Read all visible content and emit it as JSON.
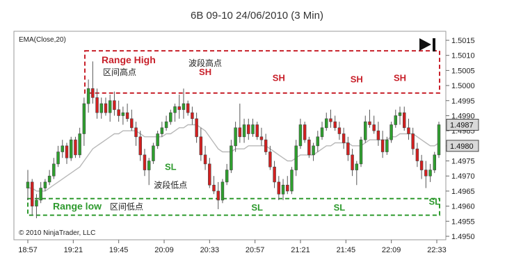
{
  "chart_data": {
    "type": "candlestick",
    "title": "6B 09-10  24/06/2010 (3 Min)",
    "indicator_label": "EMA(Close,20)",
    "copyright": "© 2010 NinjaTrader, LLC",
    "x_tick_labels": [
      "18:57",
      "19:21",
      "19:45",
      "20:09",
      "20:33",
      "20:57",
      "21:21",
      "21:45",
      "22:09",
      "22:33"
    ],
    "y_tick_labels": [
      "1.4950",
      "1.4955",
      "1.4960",
      "1.4965",
      "1.4970",
      "1.4975",
      "1.4980",
      "1.4985",
      "1.4990",
      "1.4995",
      "1.5000",
      "1.5005",
      "1.5010",
      "1.5015"
    ],
    "ylim": [
      1.495,
      1.5015
    ],
    "price_labels": [
      {
        "text": "1.4987",
        "value": 1.4987
      },
      {
        "text": "1.4980",
        "value": 1.498
      }
    ],
    "range_high": {
      "label": "Range High",
      "sublabel": "区间高点",
      "top": 1.50115,
      "bottom": 1.49975,
      "color": "#c8202a"
    },
    "range_low": {
      "label": "Range low",
      "sublabel": "区间低点",
      "top": 1.49625,
      "bottom": 1.4957,
      "color": "#2e9a2e"
    },
    "annotations": [
      {
        "text": "波段高点",
        "color": "#222222",
        "bar": 41,
        "value": 1.50065
      },
      {
        "text": "SH",
        "color": "#c8202a",
        "bar": 41,
        "value": 1.50035
      },
      {
        "text": "SH",
        "color": "#c8202a",
        "bar": 58,
        "value": 1.50015
      },
      {
        "text": "SH",
        "color": "#c8202a",
        "bar": 76,
        "value": 1.5001
      },
      {
        "text": "SH",
        "color": "#c8202a",
        "bar": 86,
        "value": 1.50015
      },
      {
        "text": "SL",
        "color": "#2e9a2e",
        "bar": 33,
        "value": 1.4972
      },
      {
        "text": "波段低点",
        "color": "#222222",
        "bar": 33,
        "value": 1.4966
      },
      {
        "text": "SL",
        "color": "#2e9a2e",
        "bar": 53,
        "value": 1.49585
      },
      {
        "text": "SL",
        "color": "#2e9a2e",
        "bar": 72,
        "value": 1.49585
      },
      {
        "text": "SL",
        "color": "#2e9a2e",
        "bar": 94,
        "value": 1.49605
      }
    ],
    "candles": [
      {
        "o": 1.4966,
        "h": 1.4972,
        "l": 1.4962,
        "c": 1.4968
      },
      {
        "o": 1.4968,
        "h": 1.4969,
        "l": 1.4957,
        "c": 1.496
      },
      {
        "o": 1.496,
        "h": 1.4964,
        "l": 1.4956,
        "c": 1.4962
      },
      {
        "o": 1.4962,
        "h": 1.4968,
        "l": 1.4961,
        "c": 1.4966
      },
      {
        "o": 1.4966,
        "h": 1.4969,
        "l": 1.4965,
        "c": 1.4968
      },
      {
        "o": 1.4968,
        "h": 1.4972,
        "l": 1.4967,
        "c": 1.497
      },
      {
        "o": 1.497,
        "h": 1.4976,
        "l": 1.4969,
        "c": 1.4974
      },
      {
        "o": 1.4974,
        "h": 1.498,
        "l": 1.4973,
        "c": 1.4978
      },
      {
        "o": 1.4978,
        "h": 1.4982,
        "l": 1.4976,
        "c": 1.498
      },
      {
        "o": 1.498,
        "h": 1.4981,
        "l": 1.4974,
        "c": 1.4976
      },
      {
        "o": 1.4976,
        "h": 1.4983,
        "l": 1.4975,
        "c": 1.4982
      },
      {
        "o": 1.4982,
        "h": 1.4983,
        "l": 1.4976,
        "c": 1.4977
      },
      {
        "o": 1.4977,
        "h": 1.4986,
        "l": 1.4976,
        "c": 1.4984
      },
      {
        "o": 1.4984,
        "h": 1.4996,
        "l": 1.498,
        "c": 1.4994
      },
      {
        "o": 1.4994,
        "h": 1.5002,
        "l": 1.4991,
        "c": 1.4999
      },
      {
        "o": 1.4999,
        "h": 1.5008,
        "l": 1.4994,
        "c": 1.4996
      },
      {
        "o": 1.4996,
        "h": 1.4999,
        "l": 1.4989,
        "c": 1.4991
      },
      {
        "o": 1.4991,
        "h": 1.4996,
        "l": 1.4989,
        "c": 1.4994
      },
      {
        "o": 1.4994,
        "h": 1.4996,
        "l": 1.499,
        "c": 1.4991
      },
      {
        "o": 1.4991,
        "h": 1.4997,
        "l": 1.4988,
        "c": 1.4995
      },
      {
        "o": 1.4995,
        "h": 1.4998,
        "l": 1.499,
        "c": 1.4992
      },
      {
        "o": 1.4992,
        "h": 1.4995,
        "l": 1.4988,
        "c": 1.499
      },
      {
        "o": 1.499,
        "h": 1.4993,
        "l": 1.4987,
        "c": 1.4991
      },
      {
        "o": 1.4991,
        "h": 1.4994,
        "l": 1.4988,
        "c": 1.4989
      },
      {
        "o": 1.4989,
        "h": 1.4992,
        "l": 1.4985,
        "c": 1.4986
      },
      {
        "o": 1.4986,
        "h": 1.4988,
        "l": 1.498,
        "c": 1.4983
      },
      {
        "o": 1.4983,
        "h": 1.4985,
        "l": 1.4975,
        "c": 1.4977
      },
      {
        "o": 1.4977,
        "h": 1.4979,
        "l": 1.497,
        "c": 1.4972
      },
      {
        "o": 1.4972,
        "h": 1.4976,
        "l": 1.4967,
        "c": 1.4975
      },
      {
        "o": 1.4975,
        "h": 1.4981,
        "l": 1.4974,
        "c": 1.498
      },
      {
        "o": 1.498,
        "h": 1.4985,
        "l": 1.4979,
        "c": 1.4984
      },
      {
        "o": 1.4984,
        "h": 1.4988,
        "l": 1.4983,
        "c": 1.4986
      },
      {
        "o": 1.4986,
        "h": 1.499,
        "l": 1.4985,
        "c": 1.4988
      },
      {
        "o": 1.4988,
        "h": 1.4992,
        "l": 1.4987,
        "c": 1.4991
      },
      {
        "o": 1.4991,
        "h": 1.4994,
        "l": 1.4988,
        "c": 1.4993
      },
      {
        "o": 1.4993,
        "h": 1.4997,
        "l": 1.4989,
        "c": 1.4992
      },
      {
        "o": 1.4992,
        "h": 1.4999,
        "l": 1.4989,
        "c": 1.4994
      },
      {
        "o": 1.4994,
        "h": 1.4995,
        "l": 1.499,
        "c": 1.4991
      },
      {
        "o": 1.4991,
        "h": 1.4993,
        "l": 1.4987,
        "c": 1.4989
      },
      {
        "o": 1.4989,
        "h": 1.4991,
        "l": 1.4981,
        "c": 1.4983
      },
      {
        "o": 1.4983,
        "h": 1.4986,
        "l": 1.4975,
        "c": 1.4977
      },
      {
        "o": 1.4977,
        "h": 1.498,
        "l": 1.4972,
        "c": 1.4974
      },
      {
        "o": 1.4974,
        "h": 1.4976,
        "l": 1.4966,
        "c": 1.4967
      },
      {
        "o": 1.4967,
        "h": 1.497,
        "l": 1.4964,
        "c": 1.4965
      },
      {
        "o": 1.4965,
        "h": 1.4968,
        "l": 1.4959,
        "c": 1.4962
      },
      {
        "o": 1.4962,
        "h": 1.4969,
        "l": 1.4961,
        "c": 1.4968
      },
      {
        "o": 1.4968,
        "h": 1.4974,
        "l": 1.4967,
        "c": 1.4972
      },
      {
        "o": 1.4972,
        "h": 1.4982,
        "l": 1.4971,
        "c": 1.498
      },
      {
        "o": 1.498,
        "h": 1.4988,
        "l": 1.4978,
        "c": 1.4986
      },
      {
        "o": 1.4986,
        "h": 1.4994,
        "l": 1.4981,
        "c": 1.4983
      },
      {
        "o": 1.4983,
        "h": 1.4989,
        "l": 1.4981,
        "c": 1.4987
      },
      {
        "o": 1.4987,
        "h": 1.4989,
        "l": 1.4982,
        "c": 1.4984
      },
      {
        "o": 1.4984,
        "h": 1.4989,
        "l": 1.4983,
        "c": 1.4987
      },
      {
        "o": 1.4987,
        "h": 1.4988,
        "l": 1.4982,
        "c": 1.4983
      },
      {
        "o": 1.4983,
        "h": 1.4986,
        "l": 1.498,
        "c": 1.4982
      },
      {
        "o": 1.4982,
        "h": 1.4984,
        "l": 1.4977,
        "c": 1.4978
      },
      {
        "o": 1.4978,
        "h": 1.498,
        "l": 1.4972,
        "c": 1.4973
      },
      {
        "o": 1.4973,
        "h": 1.4975,
        "l": 1.4966,
        "c": 1.4968
      },
      {
        "o": 1.4968,
        "h": 1.497,
        "l": 1.4962,
        "c": 1.4964
      },
      {
        "o": 1.4964,
        "h": 1.4969,
        "l": 1.4962,
        "c": 1.4967
      },
      {
        "o": 1.4967,
        "h": 1.497,
        "l": 1.4964,
        "c": 1.4965
      },
      {
        "o": 1.4965,
        "h": 1.4973,
        "l": 1.4964,
        "c": 1.4972
      },
      {
        "o": 1.4972,
        "h": 1.4982,
        "l": 1.497,
        "c": 1.498
      },
      {
        "o": 1.498,
        "h": 1.4989,
        "l": 1.4979,
        "c": 1.4987
      },
      {
        "o": 1.4987,
        "h": 1.4988,
        "l": 1.4981,
        "c": 1.4982
      },
      {
        "o": 1.4982,
        "h": 1.4983,
        "l": 1.4976,
        "c": 1.4977
      },
      {
        "o": 1.4977,
        "h": 1.4981,
        "l": 1.4975,
        "c": 1.498
      },
      {
        "o": 1.498,
        "h": 1.4985,
        "l": 1.4978,
        "c": 1.4983
      },
      {
        "o": 1.4983,
        "h": 1.4988,
        "l": 1.4982,
        "c": 1.4986
      },
      {
        "o": 1.4986,
        "h": 1.4991,
        "l": 1.4985,
        "c": 1.4989
      },
      {
        "o": 1.4989,
        "h": 1.4992,
        "l": 1.4986,
        "c": 1.4988
      },
      {
        "o": 1.4988,
        "h": 1.499,
        "l": 1.4985,
        "c": 1.4986
      },
      {
        "o": 1.4986,
        "h": 1.4988,
        "l": 1.4982,
        "c": 1.4984
      },
      {
        "o": 1.4984,
        "h": 1.4986,
        "l": 1.4979,
        "c": 1.4981
      },
      {
        "o": 1.4981,
        "h": 1.4983,
        "l": 1.4975,
        "c": 1.4977
      },
      {
        "o": 1.4977,
        "h": 1.4979,
        "l": 1.497,
        "c": 1.4972
      },
      {
        "o": 1.4972,
        "h": 1.4975,
        "l": 1.4967,
        "c": 1.4974
      },
      {
        "o": 1.4974,
        "h": 1.4983,
        "l": 1.4973,
        "c": 1.4982
      },
      {
        "o": 1.4982,
        "h": 1.499,
        "l": 1.4981,
        "c": 1.4988
      },
      {
        "o": 1.4988,
        "h": 1.4992,
        "l": 1.4986,
        "c": 1.4987
      },
      {
        "o": 1.4987,
        "h": 1.499,
        "l": 1.4984,
        "c": 1.4985
      },
      {
        "o": 1.4985,
        "h": 1.4988,
        "l": 1.498,
        "c": 1.4982
      },
      {
        "o": 1.4982,
        "h": 1.4985,
        "l": 1.4976,
        "c": 1.4978
      },
      {
        "o": 1.4978,
        "h": 1.4983,
        "l": 1.4977,
        "c": 1.4982
      },
      {
        "o": 1.4982,
        "h": 1.4988,
        "l": 1.4981,
        "c": 1.4987
      },
      {
        "o": 1.4987,
        "h": 1.4992,
        "l": 1.4986,
        "c": 1.499
      },
      {
        "o": 1.499,
        "h": 1.4993,
        "l": 1.4987,
        "c": 1.4991
      },
      {
        "o": 1.4991,
        "h": 1.4993,
        "l": 1.4985,
        "c": 1.4986
      },
      {
        "o": 1.4986,
        "h": 1.4989,
        "l": 1.4982,
        "c": 1.4984
      },
      {
        "o": 1.4984,
        "h": 1.4986,
        "l": 1.4977,
        "c": 1.4979
      },
      {
        "o": 1.4979,
        "h": 1.4981,
        "l": 1.4973,
        "c": 1.4975
      },
      {
        "o": 1.4975,
        "h": 1.4977,
        "l": 1.4969,
        "c": 1.4972
      },
      {
        "o": 1.4972,
        "h": 1.4975,
        "l": 1.4966,
        "c": 1.497
      },
      {
        "o": 1.497,
        "h": 1.4974,
        "l": 1.4968,
        "c": 1.4972
      },
      {
        "o": 1.4972,
        "h": 1.4978,
        "l": 1.4971,
        "c": 1.4977
      },
      {
        "o": 1.4977,
        "h": 1.4988,
        "l": 1.4976,
        "c": 1.4987
      }
    ],
    "ema": [
      1.4966,
      1.4966,
      1.4965,
      1.4965,
      1.4965,
      1.4966,
      1.4967,
      1.4968,
      1.4969,
      1.497,
      1.4971,
      1.4972,
      1.4973,
      1.4975,
      1.4977,
      1.4979,
      1.498,
      1.4981,
      1.4982,
      1.4983,
      1.4984,
      1.4984,
      1.4985,
      1.4985,
      1.4985,
      1.4985,
      1.4984,
      1.4983,
      1.4983,
      1.4983,
      1.4983,
      1.4983,
      1.4984,
      1.4984,
      1.4985,
      1.4986,
      1.4986,
      1.4987,
      1.4987,
      1.4987,
      1.4986,
      1.4985,
      1.4983,
      1.4981,
      1.4979,
      1.4978,
      1.4978,
      1.4978,
      1.4979,
      1.4979,
      1.4979,
      1.498,
      1.498,
      1.498,
      1.498,
      1.498,
      1.4979,
      1.4978,
      1.4977,
      1.4976,
      1.4975,
      1.4975,
      1.4976,
      1.4977,
      1.4977,
      1.4977,
      1.4977,
      1.4978,
      1.4979,
      1.498,
      1.498,
      1.4981,
      1.4981,
      1.4981,
      1.4981,
      1.498,
      1.498,
      1.498,
      1.4981,
      1.4982,
      1.4982,
      1.4982,
      1.4982,
      1.4982,
      1.4983,
      1.4983,
      1.4984,
      1.4984,
      1.4984,
      1.4984,
      1.4983,
      1.4982,
      1.4981,
      1.498,
      1.498,
      1.4981
    ]
  }
}
